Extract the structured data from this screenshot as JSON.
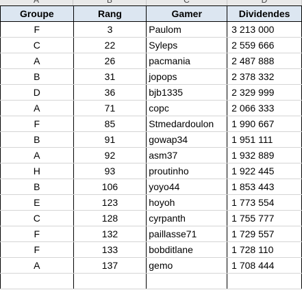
{
  "column_letters": [
    "A",
    "B",
    "C",
    "D"
  ],
  "headers": {
    "group": "Groupe",
    "rank": "Rang",
    "gamer": "Gamer",
    "dividends": "Dividendes"
  },
  "rows": [
    {
      "group": "F",
      "rank": "3",
      "gamer": "Paulom",
      "dividends": "3 213 000"
    },
    {
      "group": "C",
      "rank": "22",
      "gamer": "Syleps",
      "dividends": "2 559 666"
    },
    {
      "group": "A",
      "rank": "26",
      "gamer": "pacmania",
      "dividends": "2 487 888"
    },
    {
      "group": "B",
      "rank": "31",
      "gamer": "jopops",
      "dividends": "2 378 332"
    },
    {
      "group": "D",
      "rank": "36",
      "gamer": "bjb1335",
      "dividends": "2 329 999"
    },
    {
      "group": "A",
      "rank": "71",
      "gamer": "copc",
      "dividends": "2 066 333"
    },
    {
      "group": "F",
      "rank": "85",
      "gamer": "Stmedardoulon",
      "dividends": "1 990 667"
    },
    {
      "group": "B",
      "rank": "91",
      "gamer": "gowap34",
      "dividends": "1 951 111"
    },
    {
      "group": "A",
      "rank": "92",
      "gamer": "asm37",
      "dividends": "1 932 889"
    },
    {
      "group": "H",
      "rank": "93",
      "gamer": "proutinho",
      "dividends": "1 922 445"
    },
    {
      "group": "B",
      "rank": "106",
      "gamer": "yoyo44",
      "dividends": "1 853 443"
    },
    {
      "group": "E",
      "rank": "123",
      "gamer": "hoyoh",
      "dividends": "1 773 554"
    },
    {
      "group": "C",
      "rank": "128",
      "gamer": "cyrpanth",
      "dividends": "1 755 777"
    },
    {
      "group": "F",
      "rank": "132",
      "gamer": "paillasse71",
      "dividends": "1 729 557"
    },
    {
      "group": "F",
      "rank": "133",
      "gamer": "bobditlane",
      "dividends": "1 728 110"
    },
    {
      "group": "A",
      "rank": "137",
      "gamer": "gemo",
      "dividends": "1 708 444"
    },
    {
      "group": "",
      "rank": "",
      "gamer": "",
      "dividends": ""
    }
  ]
}
